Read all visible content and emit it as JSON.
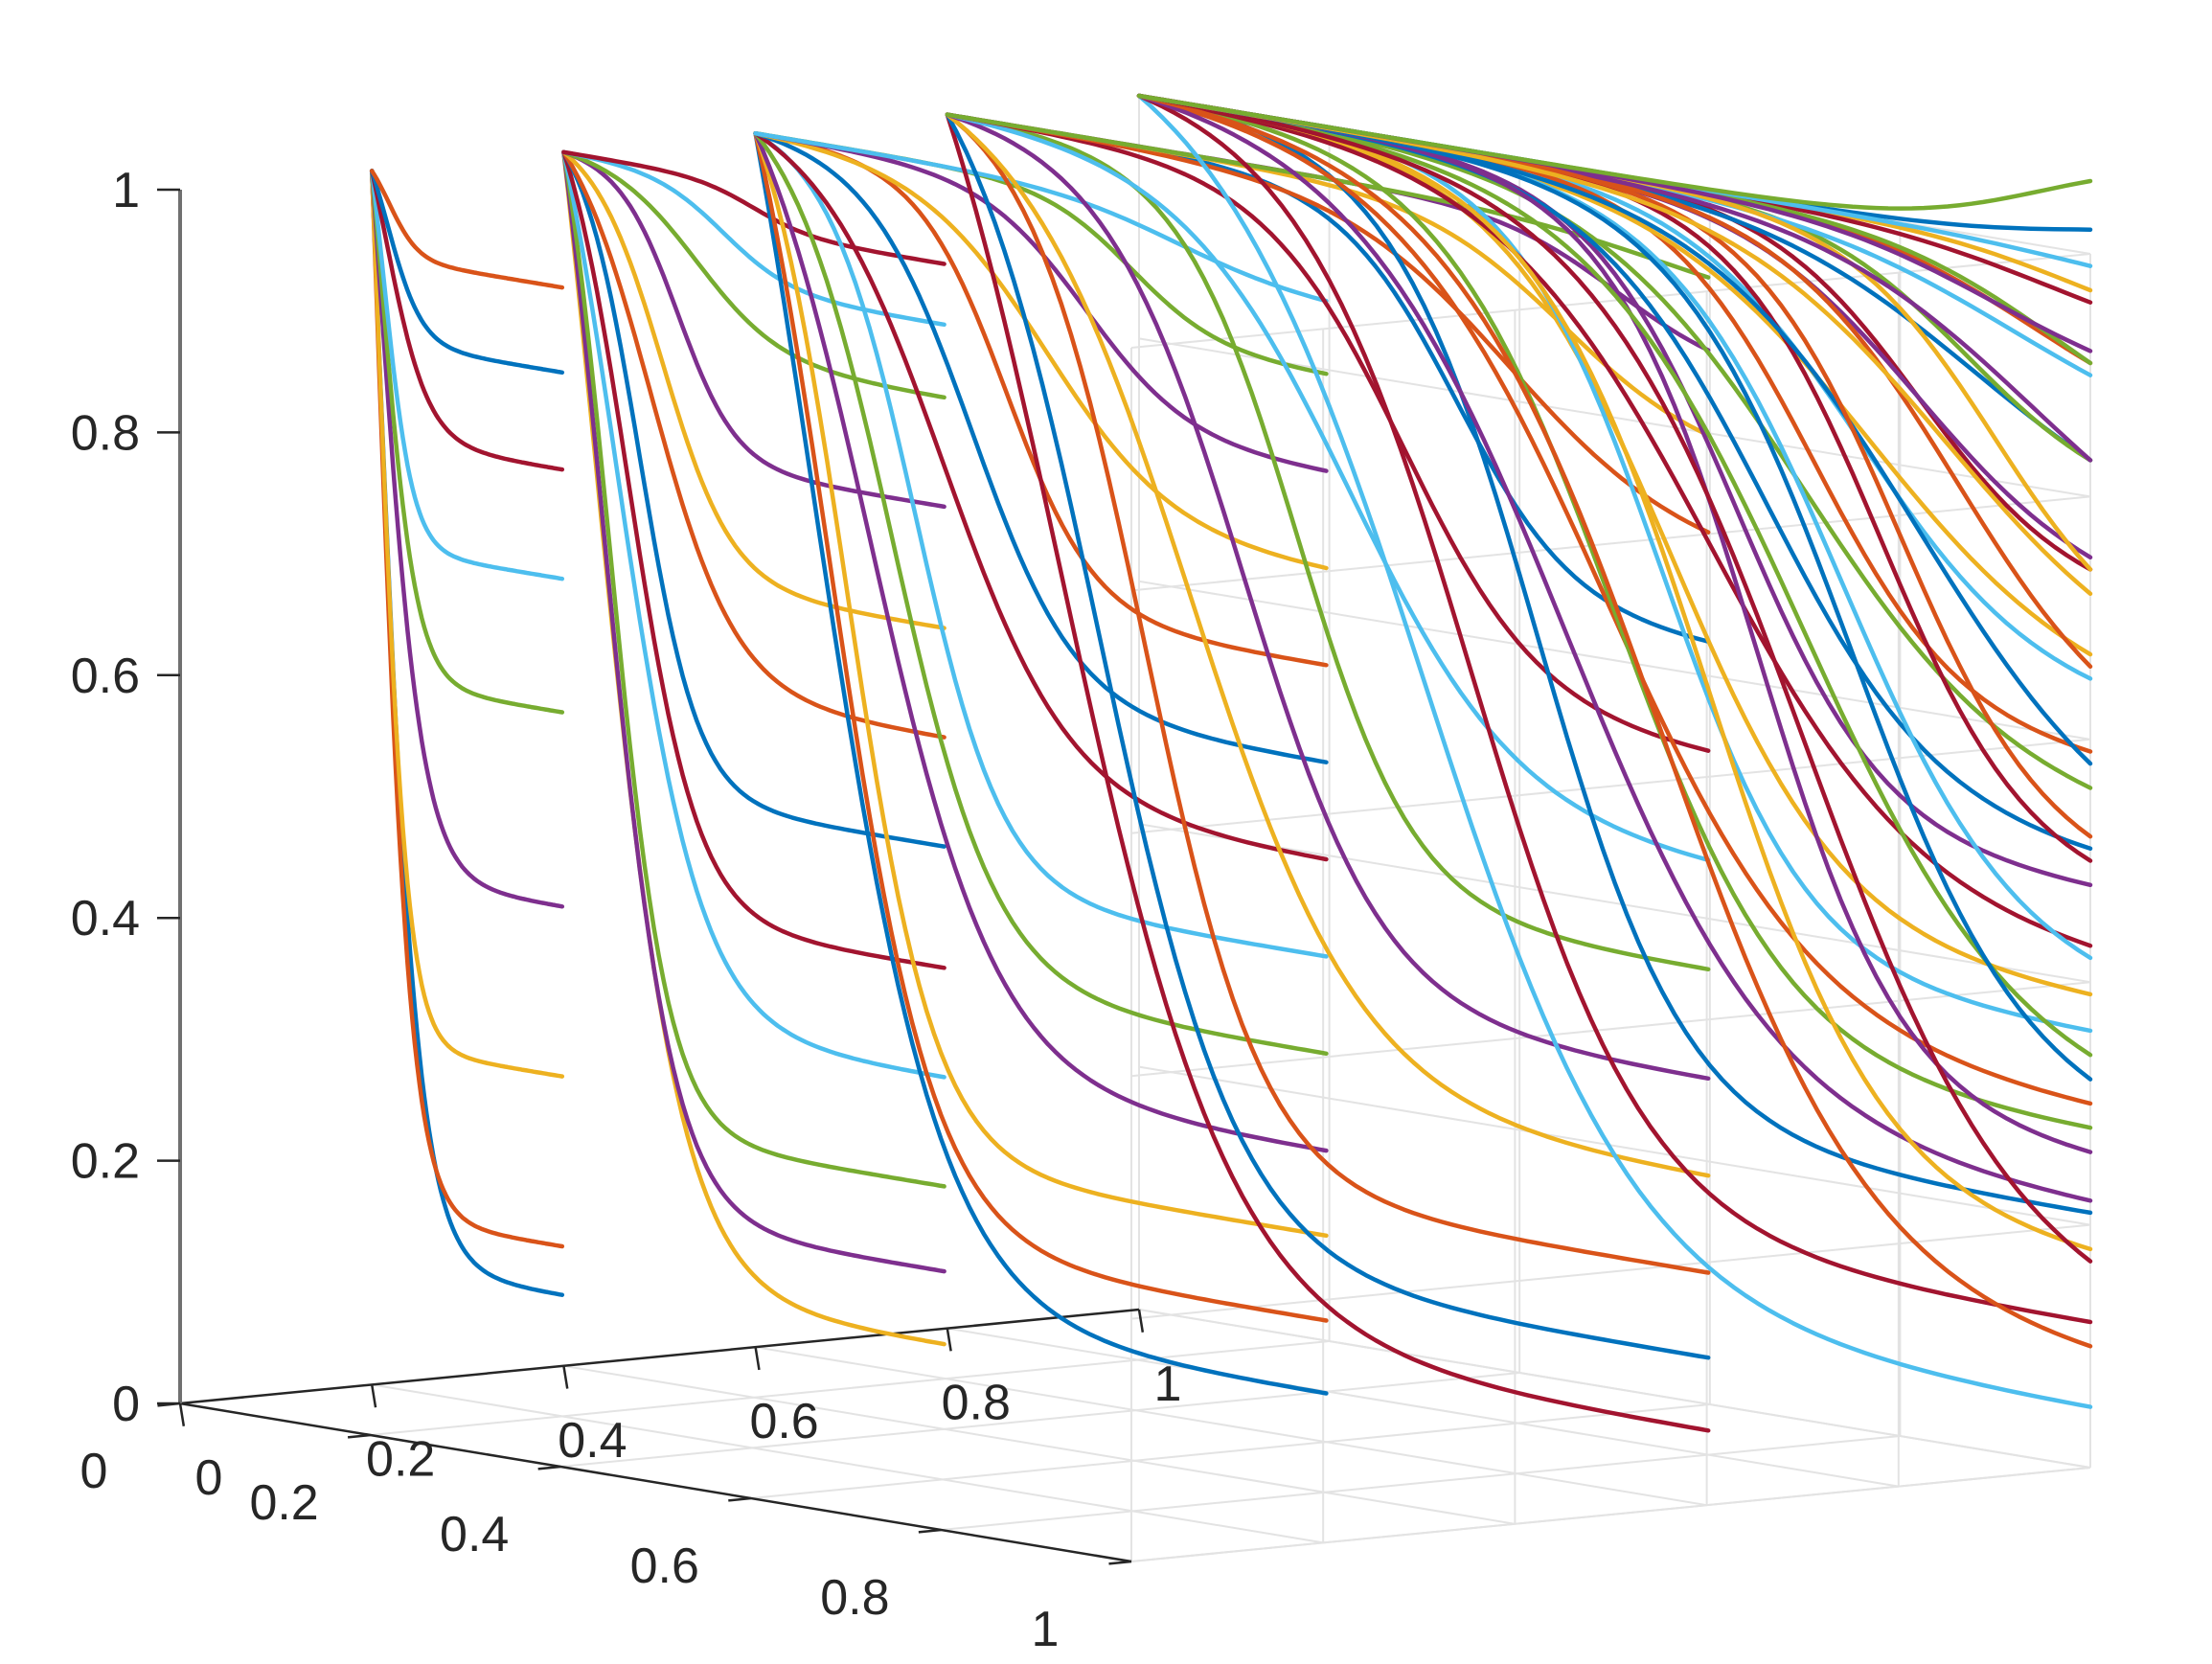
{
  "chart_data": {
    "type": "line",
    "view": "3d",
    "title": "",
    "xlabel": "",
    "ylabel": "",
    "zlabel": "",
    "xlim": [
      0,
      1
    ],
    "ylim": [
      0,
      1
    ],
    "zlim": [
      0,
      1
    ],
    "xticks": [
      "0",
      "0.2",
      "0.4",
      "0.6",
      "0.8",
      "1"
    ],
    "yticks": [
      "0",
      "0.2",
      "0.4",
      "0.6",
      "0.8",
      "1"
    ],
    "zticks": [
      "0",
      "0.2",
      "0.4",
      "0.6",
      "0.8",
      "1"
    ],
    "grid": true,
    "colors": [
      "#0072BD",
      "#D95319",
      "#EDB120",
      "#7E2F8E",
      "#77AC30",
      "#4DBEEE",
      "#A2142F"
    ],
    "series_description": "Family of decreasing sigmoid curves; each curve starts at (x=0, y=0, z=1) and runs along x to x_end at fixed depth y = x_end, ending at z_end.",
    "series": [
      {
        "x_end": 0.2,
        "z_end": 0.1,
        "curves": [
          [
            0.1,
            0.01
          ],
          [
            0.14,
            0.02
          ],
          [
            0.28,
            0.03
          ],
          [
            0.42,
            0.04
          ],
          [
            0.58,
            0.05
          ],
          [
            0.69,
            0.06
          ],
          [
            0.78,
            0.07
          ],
          [
            0.86,
            0.08
          ],
          [
            0.93,
            0.09
          ]
        ]
      },
      {
        "x_end": 0.4,
        "z_end": 0.07,
        "curves": [
          [
            0.07,
            0.08
          ],
          [
            0.13,
            0.1
          ],
          [
            0.2,
            0.12
          ],
          [
            0.29,
            0.14
          ],
          [
            0.38,
            0.17
          ],
          [
            0.48,
            0.2
          ],
          [
            0.57,
            0.23
          ],
          [
            0.66,
            0.26
          ],
          [
            0.76,
            0.3
          ],
          [
            0.85,
            0.35
          ],
          [
            0.91,
            0.42
          ],
          [
            0.96,
            0.5
          ]
        ]
      },
      {
        "x_end": 0.6,
        "z_end": 0.04,
        "curves": [
          [
            0.04,
            0.1
          ],
          [
            0.1,
            0.13
          ],
          [
            0.17,
            0.16
          ],
          [
            0.24,
            0.2
          ],
          [
            0.32,
            0.24
          ],
          [
            0.4,
            0.28
          ],
          [
            0.48,
            0.33
          ],
          [
            0.56,
            0.38
          ],
          [
            0.64,
            0.44
          ],
          [
            0.72,
            0.51
          ],
          [
            0.8,
            0.58
          ],
          [
            0.88,
            0.66
          ],
          [
            0.94,
            0.74
          ]
        ]
      },
      {
        "x_end": 0.8,
        "z_end": 0.02,
        "curves": [
          [
            0.02,
            0.15
          ],
          [
            0.08,
            0.2
          ],
          [
            0.15,
            0.26
          ],
          [
            0.23,
            0.32
          ],
          [
            0.31,
            0.39
          ],
          [
            0.4,
            0.46
          ],
          [
            0.49,
            0.53
          ],
          [
            0.58,
            0.6
          ],
          [
            0.67,
            0.67
          ],
          [
            0.76,
            0.74
          ],
          [
            0.84,
            0.81
          ],
          [
            0.91,
            0.88
          ],
          [
            0.97,
            0.94
          ]
        ]
      },
      {
        "x_end": 1.0,
        "z_end": 0.05,
        "curves": [
          [
            0.05,
            0.3
          ],
          [
            0.12,
            0.35
          ],
          [
            0.21,
            0.42
          ],
          [
            0.3,
            0.49
          ],
          [
            0.39,
            0.56
          ],
          [
            0.48,
            0.63
          ],
          [
            0.56,
            0.7
          ],
          [
            0.65,
            0.76
          ],
          [
            0.74,
            0.82
          ],
          [
            0.83,
            0.88
          ],
          [
            0.91,
            0.94
          ],
          [
            0.97,
            0.99
          ]
        ]
      },
      {
        "x_end": 1.0,
        "z_end": 0.25,
        "curves": [
          [
            0.22,
            0.45
          ],
          [
            0.28,
            0.5
          ],
          [
            0.36,
            0.55
          ],
          [
            0.43,
            0.6
          ],
          [
            0.51,
            0.66
          ],
          [
            0.59,
            0.71
          ],
          [
            0.67,
            0.77
          ],
          [
            0.75,
            0.82
          ],
          [
            0.83,
            0.87
          ],
          [
            0.9,
            0.92
          ],
          [
            0.96,
            0.96
          ],
          [
            1.02,
            0.99
          ]
        ]
      },
      {
        "x_end": 1.0,
        "z_end": 0.45,
        "curves": [
          [
            0.1,
            0.55
          ],
          [
            0.18,
            0.6
          ],
          [
            0.26,
            0.65
          ],
          [
            0.34,
            0.7
          ],
          [
            0.42,
            0.74
          ],
          [
            0.5,
            0.78
          ],
          [
            0.58,
            0.82
          ],
          [
            0.66,
            0.86
          ],
          [
            0.74,
            0.9
          ],
          [
            0.83,
            0.94
          ],
          [
            0.91,
            0.97
          ],
          [
            0.99,
            0.99
          ]
        ]
      },
      {
        "x_end": 1.0,
        "z_end": 0.6,
        "curves": [
          [
            0.17,
            0.7
          ],
          [
            0.32,
            0.75
          ],
          [
            0.52,
            0.8
          ],
          [
            0.72,
            0.85
          ],
          [
            0.92,
            0.9
          ],
          [
            1.06,
            0.95
          ]
        ]
      }
    ]
  }
}
